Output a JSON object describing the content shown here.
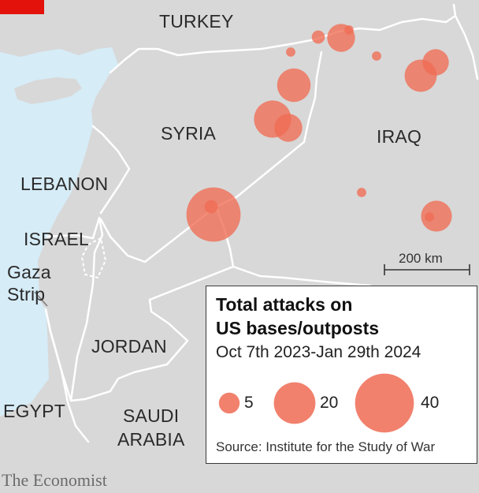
{
  "colors": {
    "sea": "#d6ecf7",
    "land": "#d8d8d8",
    "border": "#ffffff",
    "bubble": "#ef6b53",
    "brand_red": "#e3120b"
  },
  "labels": {
    "turkey": "TURKEY",
    "syria": "SYRIA",
    "iraq": "IRAQ",
    "lebanon": "LEBANON",
    "israel": "ISRAEL",
    "gaza_line1": "Gaza",
    "gaza_line2": "Strip",
    "jordan": "JORDAN",
    "egypt": "EGYPT",
    "saudi_line1": "SAUDI",
    "saudi_line2": "ARABIA"
  },
  "scale_bar": {
    "label": "200 km"
  },
  "legend": {
    "title_line1": "Total attacks on",
    "title_line2": "US bases/outposts",
    "subtitle": "Oct 7th 2023-Jan 29th 2024",
    "sizes": [
      {
        "value": 5,
        "label": "5"
      },
      {
        "value": 20,
        "label": "20"
      },
      {
        "value": 40,
        "label": "40"
      }
    ],
    "source": "Source: Institute for the Study of War"
  },
  "attacks": [
    {
      "value": 9
    },
    {
      "value": 2
    },
    {
      "value": 1
    },
    {
      "value": 1
    },
    {
      "value": 1
    },
    {
      "value": 8
    },
    {
      "value": 12
    },
    {
      "value": 13
    },
    {
      "value": 16
    },
    {
      "value": 9
    },
    {
      "value": 2
    },
    {
      "value": 34
    },
    {
      "value": 1
    },
    {
      "value": 1
    },
    {
      "value": 11
    },
    {
      "value": 15
    }
  ],
  "footer": {
    "brand": "The Economist"
  }
}
